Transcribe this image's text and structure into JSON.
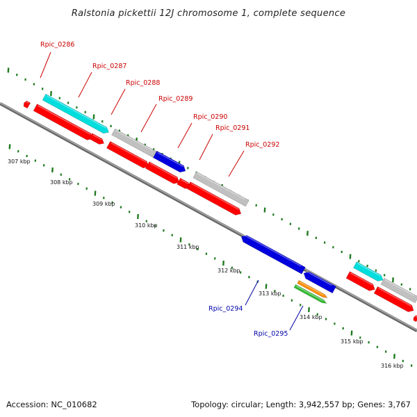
{
  "title": "Ralstonia pickettii 12J chromosome 1, complete sequence",
  "footer": {
    "accession": "Accession: NC_010682",
    "summary": "Topology: circular; Length: 3,942,557 bp; Genes: 3,767"
  },
  "colors": {
    "backbone": "#808080",
    "tick": "#1f7a1f",
    "red": "#ff0000",
    "cyan": "#00dddd",
    "gray": "#c0c0c0",
    "blue": "#0000dd",
    "orange": "#ff8c00",
    "green": "#33bb33",
    "label_red": "#cc0000",
    "label_blue": "#0000aa"
  },
  "kbp_labels": [
    "307 kbp",
    "308 kbp",
    "309 kbp",
    "310 kbp",
    "311 kbp",
    "312 kbp",
    "313 kbp",
    "314 kbp",
    "315 kbp",
    "316 kbp"
  ],
  "gene_labels": [
    {
      "text": "Rpic_0286",
      "color": "label_red"
    },
    {
      "text": "Rpic_0287",
      "color": "label_red"
    },
    {
      "text": "Rpic_0288",
      "color": "label_red"
    },
    {
      "text": "Rpic_0289",
      "color": "label_red"
    },
    {
      "text": "Rpic_0290",
      "color": "label_red"
    },
    {
      "text": "Rpic_0291",
      "color": "label_red"
    },
    {
      "text": "Rpic_0292",
      "color": "label_red"
    },
    {
      "text": "Rpic_0294",
      "color": "label_blue"
    },
    {
      "text": "Rpic_0295",
      "color": "label_blue"
    }
  ]
}
